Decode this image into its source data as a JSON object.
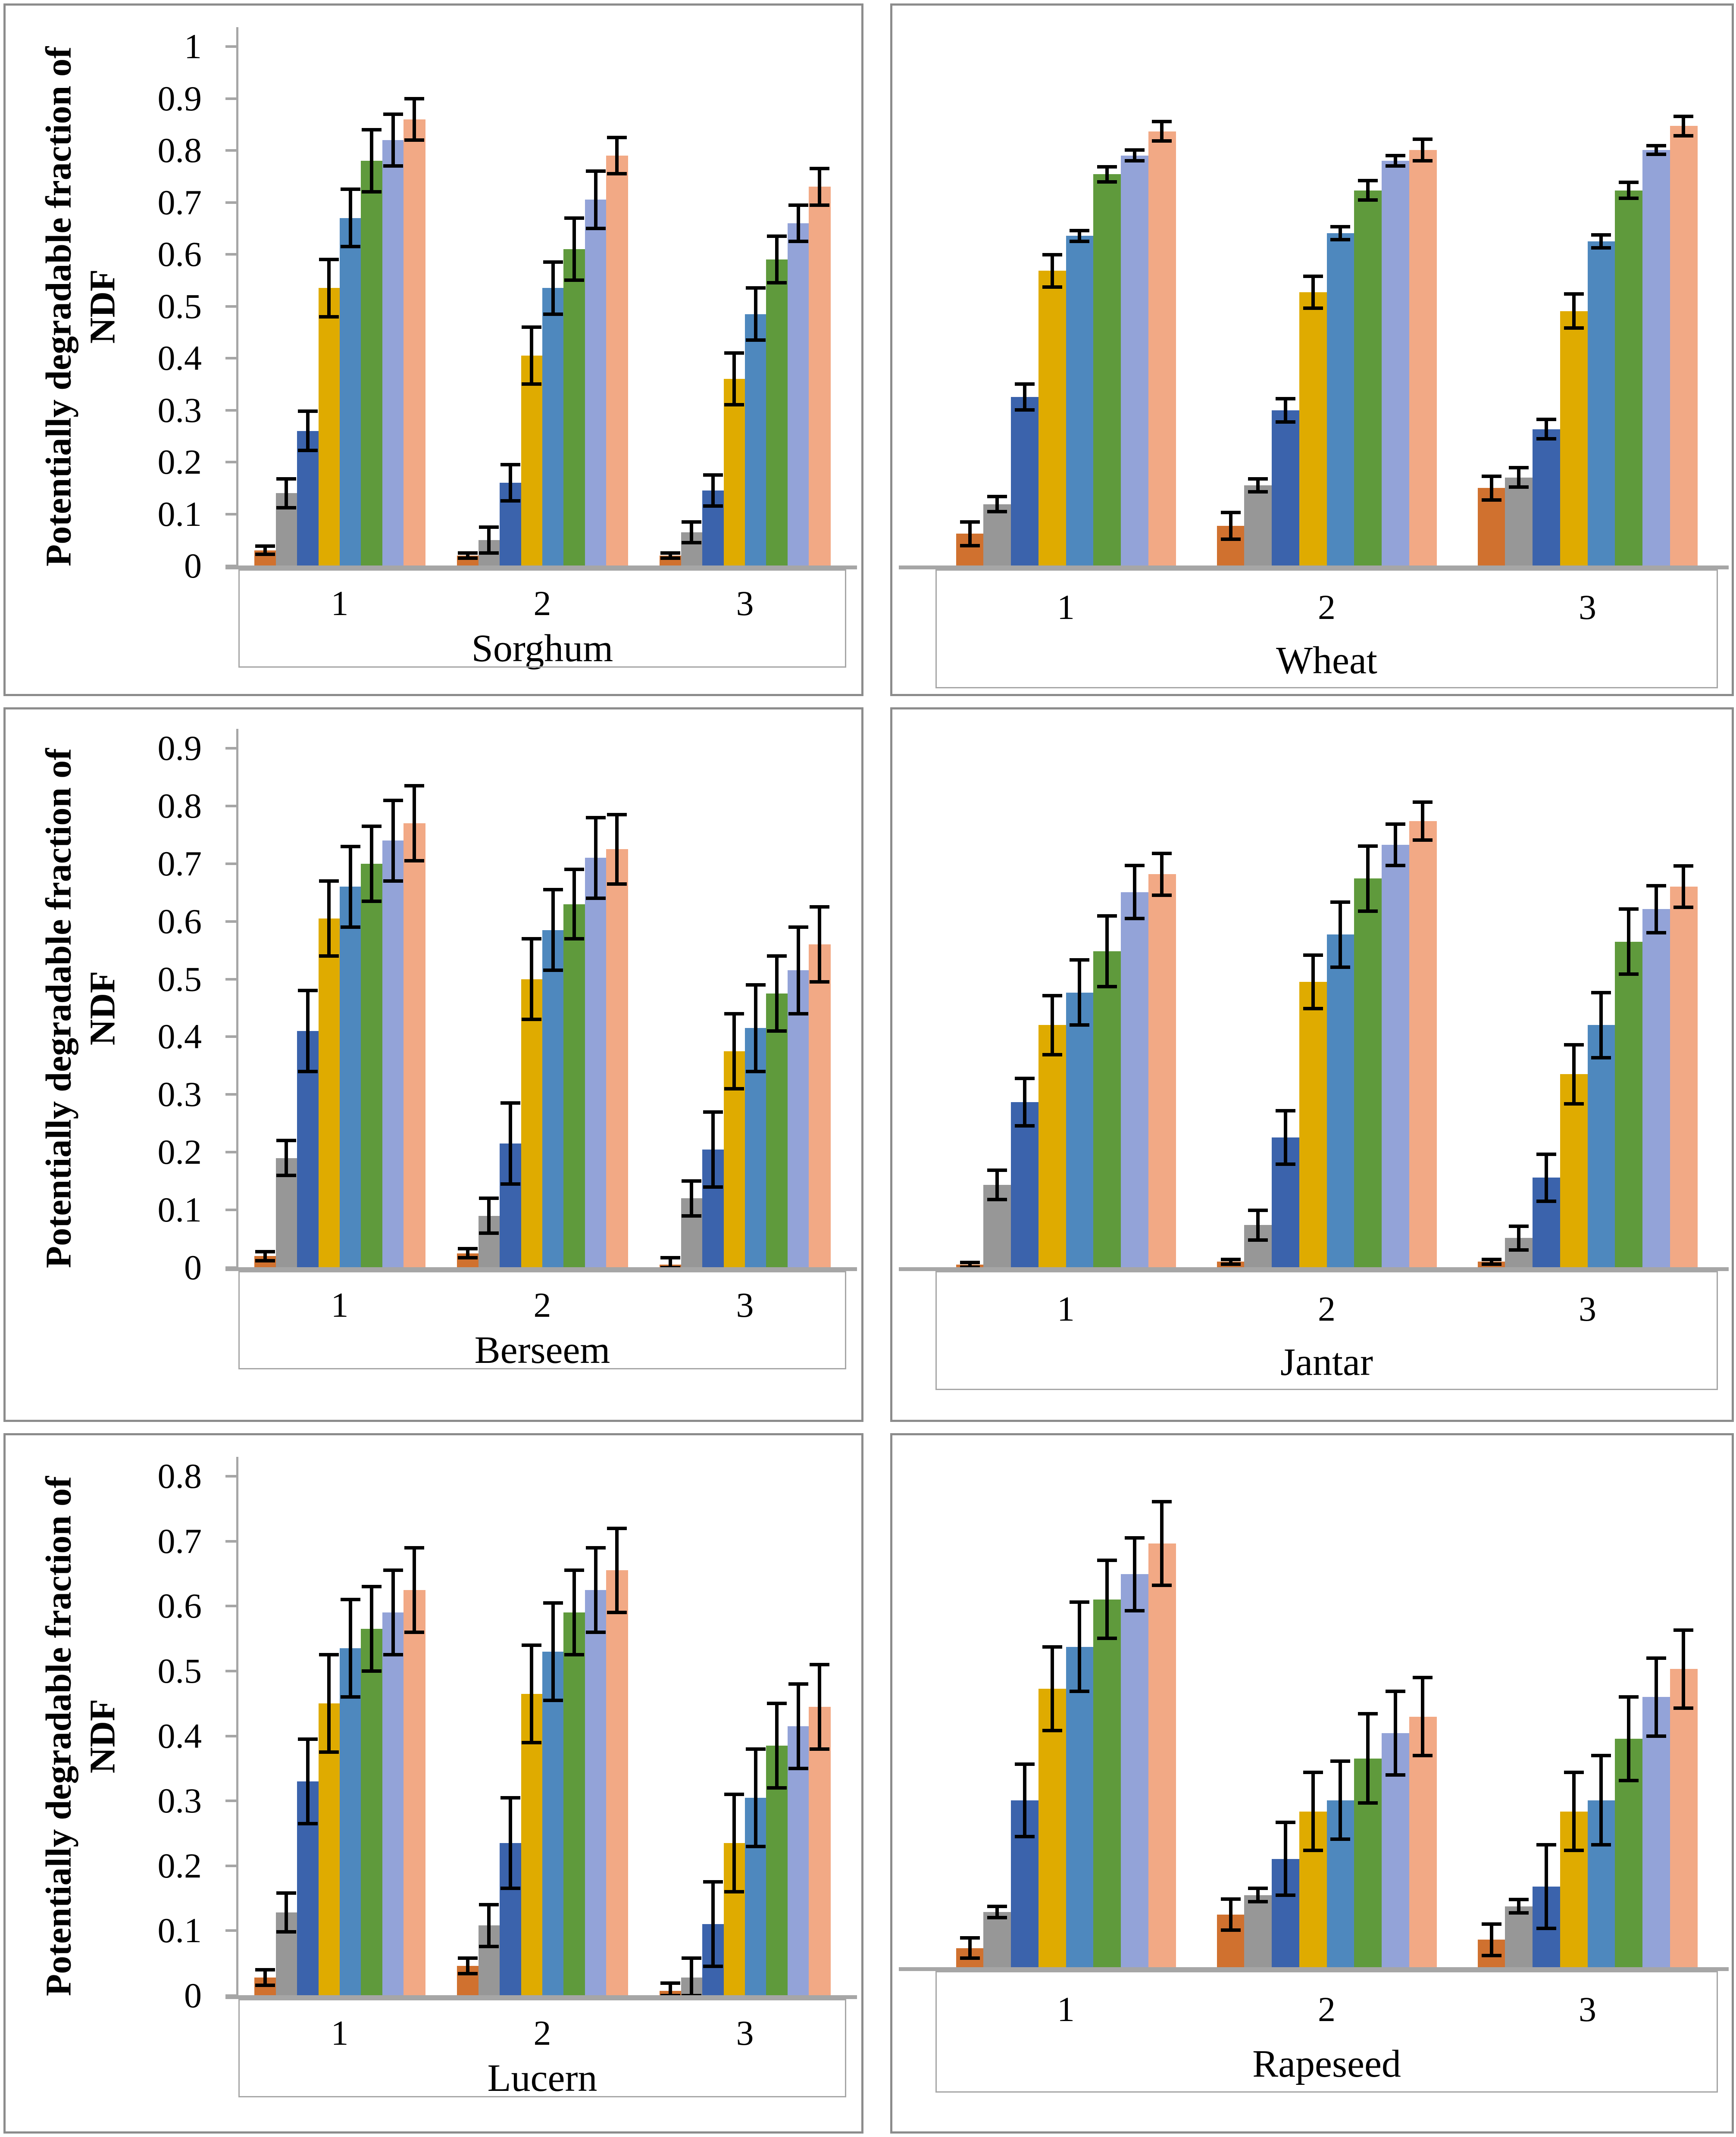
{
  "page": {
    "background": "#FFFFFF"
  },
  "colors": {
    "series": [
      "#D0712F",
      "#979797",
      "#3B63AC",
      "#DFAB00",
      "#4E88BE",
      "#5F9A3C",
      "#93A3D8",
      "#F2A985"
    ],
    "panel_border": "#8C8C8C",
    "axis": "#A6A6A6",
    "error_bar": "#000000",
    "text": "#000000"
  },
  "chart_data": [
    {
      "id": "sorghum",
      "type": "bar",
      "title": "Sorghum",
      "ylabel": "Potentially degradable fraction of NDF",
      "categories": [
        "1",
        "2",
        "3"
      ],
      "ylim": [
        0,
        1
      ],
      "yticks": [
        "1",
        "0.9",
        "0.8",
        "0.7",
        "0.6",
        "0.5",
        "0.4",
        "0.3",
        "0.2",
        "0.1",
        "0"
      ],
      "axis_visible": true,
      "grid": false,
      "legend": "none",
      "values": [
        [
          0.03,
          0.14,
          0.26,
          0.535,
          0.67,
          0.78,
          0.82,
          0.86
        ],
        [
          0.02,
          0.05,
          0.16,
          0.405,
          0.535,
          0.61,
          0.705,
          0.79
        ],
        [
          0.02,
          0.065,
          0.145,
          0.36,
          0.485,
          0.59,
          0.66,
          0.73
        ]
      ],
      "errors": [
        [
          0.008,
          0.028,
          0.038,
          0.055,
          0.055,
          0.06,
          0.05,
          0.04
        ],
        [
          0.005,
          0.025,
          0.035,
          0.055,
          0.05,
          0.06,
          0.055,
          0.035
        ],
        [
          0.005,
          0.02,
          0.03,
          0.05,
          0.05,
          0.045,
          0.035,
          0.035
        ]
      ]
    },
    {
      "id": "wheat",
      "type": "bar",
      "title": "Wheat",
      "ylabel": "",
      "categories": [
        "1",
        "2",
        "3"
      ],
      "ylim": [
        0,
        1
      ],
      "yticks": [],
      "axis_visible": false,
      "grid": false,
      "legend": "none",
      "values": [
        [
          0.06,
          0.115,
          0.315,
          0.55,
          0.615,
          0.73,
          0.765,
          0.81
        ],
        [
          0.075,
          0.15,
          0.29,
          0.51,
          0.62,
          0.7,
          0.755,
          0.775
        ],
        [
          0.145,
          0.165,
          0.255,
          0.475,
          0.605,
          0.7,
          0.775,
          0.82
        ]
      ],
      "errors": [
        [
          0.022,
          0.014,
          0.024,
          0.03,
          0.01,
          0.014,
          0.01,
          0.018
        ],
        [
          0.025,
          0.012,
          0.022,
          0.03,
          0.012,
          0.018,
          0.01,
          0.02
        ],
        [
          0.022,
          0.018,
          0.018,
          0.032,
          0.012,
          0.015,
          0.008,
          0.018
        ]
      ]
    },
    {
      "id": "berseem",
      "type": "bar",
      "title": "Berseem",
      "ylabel": "Potentially degradable fraction of NDF",
      "categories": [
        "1",
        "2",
        "3"
      ],
      "ylim": [
        0,
        0.9
      ],
      "yticks": [
        "0.9",
        "0.8",
        "0.7",
        "0.6",
        "0.5",
        "0.4",
        "0.3",
        "0.2",
        "0.1",
        "0"
      ],
      "axis_visible": true,
      "grid": false,
      "legend": "none",
      "values": [
        [
          0.02,
          0.19,
          0.41,
          0.605,
          0.66,
          0.7,
          0.74,
          0.77
        ],
        [
          0.025,
          0.09,
          0.215,
          0.5,
          0.585,
          0.63,
          0.71,
          0.725
        ],
        [
          0.005,
          0.12,
          0.205,
          0.375,
          0.415,
          0.475,
          0.515,
          0.56
        ]
      ],
      "errors": [
        [
          0.008,
          0.03,
          0.07,
          0.065,
          0.07,
          0.065,
          0.07,
          0.065
        ],
        [
          0.008,
          0.03,
          0.07,
          0.07,
          0.07,
          0.06,
          0.07,
          0.06
        ],
        [
          0.012,
          0.03,
          0.065,
          0.065,
          0.075,
          0.065,
          0.075,
          0.065
        ]
      ]
    },
    {
      "id": "jantar",
      "type": "bar",
      "title": "Jantar",
      "ylabel": "",
      "categories": [
        "1",
        "2",
        "3"
      ],
      "ylim": [
        0,
        0.9
      ],
      "yticks": [],
      "axis_visible": false,
      "grid": false,
      "legend": "none",
      "values": [
        [
          0.005,
          0.14,
          0.28,
          0.41,
          0.465,
          0.535,
          0.635,
          0.665
        ],
        [
          0.01,
          0.072,
          0.22,
          0.483,
          0.563,
          0.658,
          0.715,
          0.755
        ],
        [
          0.01,
          0.05,
          0.152,
          0.327,
          0.41,
          0.551,
          0.606,
          0.644
        ]
      ],
      "errors": [
        [
          0.004,
          0.025,
          0.04,
          0.05,
          0.055,
          0.06,
          0.045,
          0.035
        ],
        [
          0.004,
          0.025,
          0.045,
          0.045,
          0.055,
          0.055,
          0.035,
          0.032
        ],
        [
          0.004,
          0.02,
          0.04,
          0.05,
          0.055,
          0.055,
          0.04,
          0.035
        ]
      ]
    },
    {
      "id": "lucern",
      "type": "bar",
      "title": "Lucern",
      "ylabel": "Potentially degradable fraction of NDF",
      "categories": [
        "1",
        "2",
        "3"
      ],
      "ylim": [
        0,
        0.8
      ],
      "yticks": [
        "0.8",
        "0.7",
        "0.6",
        "0.5",
        "0.4",
        "0.3",
        "0.2",
        "0.1",
        "0"
      ],
      "axis_visible": true,
      "grid": false,
      "legend": "none",
      "values": [
        [
          0.028,
          0.128,
          0.33,
          0.45,
          0.535,
          0.565,
          0.59,
          0.625
        ],
        [
          0.046,
          0.108,
          0.235,
          0.465,
          0.53,
          0.59,
          0.625,
          0.655
        ],
        [
          0.007,
          0.028,
          0.11,
          0.235,
          0.305,
          0.385,
          0.415,
          0.445
        ]
      ],
      "errors": [
        [
          0.012,
          0.03,
          0.065,
          0.075,
          0.075,
          0.065,
          0.065,
          0.065
        ],
        [
          0.012,
          0.032,
          0.07,
          0.075,
          0.075,
          0.065,
          0.065,
          0.065
        ],
        [
          0.012,
          0.03,
          0.065,
          0.075,
          0.075,
          0.065,
          0.065,
          0.065
        ]
      ]
    },
    {
      "id": "rapeseed",
      "type": "bar",
      "title": "Rapeseed",
      "ylabel": "",
      "categories": [
        "1",
        "2",
        "3"
      ],
      "ylim": [
        0,
        0.9
      ],
      "yticks": [],
      "axis_visible": false,
      "grid": false,
      "legend": "none",
      "values": [
        [
          0.035,
          0.1,
          0.3,
          0.5,
          0.575,
          0.66,
          0.705,
          0.76
        ],
        [
          0.095,
          0.13,
          0.195,
          0.28,
          0.3,
          0.375,
          0.42,
          0.45
        ],
        [
          0.05,
          0.11,
          0.145,
          0.28,
          0.3,
          0.41,
          0.485,
          0.535
        ]
      ],
      "errors": [
        [
          0.018,
          0.01,
          0.065,
          0.075,
          0.08,
          0.07,
          0.065,
          0.075
        ],
        [
          0.028,
          0.012,
          0.065,
          0.07,
          0.07,
          0.08,
          0.075,
          0.07
        ],
        [
          0.028,
          0.012,
          0.075,
          0.07,
          0.08,
          0.075,
          0.07,
          0.07
        ]
      ]
    }
  ]
}
